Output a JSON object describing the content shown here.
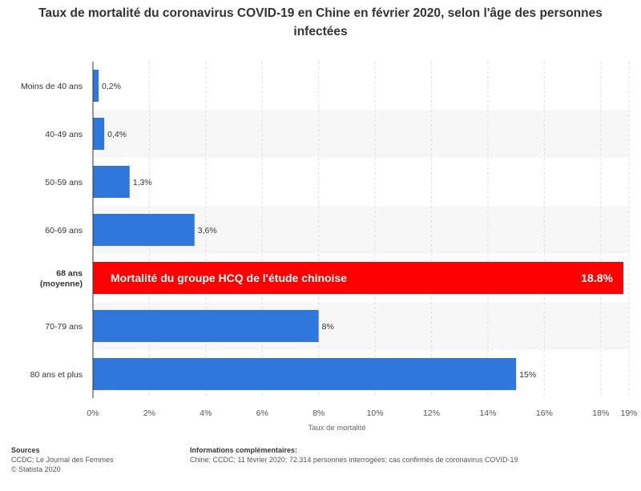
{
  "chart_data": {
    "type": "bar",
    "orientation": "horizontal",
    "title": "Taux de mortalité du coronavirus COVID-19 en Chine en février 2020, selon l'âge des personnes infectées",
    "xlabel": "Taux de mortalité",
    "ylabel": "",
    "categories": [
      "Moins de 40 ans",
      "40-49 ans",
      "50-59 ans",
      "60-69 ans",
      "68 ans (moyenne)",
      "70-79 ans",
      "80 ans et plus"
    ],
    "category_lines": [
      [
        "Moins de 40 ans"
      ],
      [
        "40-49 ans"
      ],
      [
        "50-59 ans"
      ],
      [
        "60-69 ans"
      ],
      [
        "68 ans",
        "(moyenne)"
      ],
      [
        "70-79 ans"
      ],
      [
        "80 ans et plus"
      ]
    ],
    "values": [
      0.2,
      0.4,
      1.3,
      3.6,
      18.8,
      8,
      15
    ],
    "value_labels": [
      "0,2%",
      "0,4%",
      "1,3%",
      "3,6%",
      "18.8%",
      "8%",
      "15%"
    ],
    "highlight": {
      "index": 4,
      "label": "Mortalité du groupe HCQ de l'étude chinoise",
      "value_label": "18.8%",
      "color": "#ff0000"
    },
    "xlim": [
      0,
      19
    ],
    "ticks": [
      0,
      2,
      4,
      6,
      8,
      10,
      12,
      14,
      16,
      18,
      19
    ],
    "tick_labels": [
      "0%",
      "2%",
      "4%",
      "6%",
      "8%",
      "10%",
      "12%",
      "14%",
      "16%",
      "18%",
      "19%"
    ],
    "grid": true,
    "legend": "none",
    "bar_color": "#2f77dc"
  },
  "footer": {
    "sources_head": "Sources",
    "sources_lines": [
      "CCDC; Le Journal des Femmes",
      "© Statista 2020"
    ],
    "info_head": "Informations complémentaires:",
    "info_text": "Chine; CCDC; 11 février 2020; 72.314 personnes interrogées; cas confirmés de coronavirus COVID-19"
  }
}
